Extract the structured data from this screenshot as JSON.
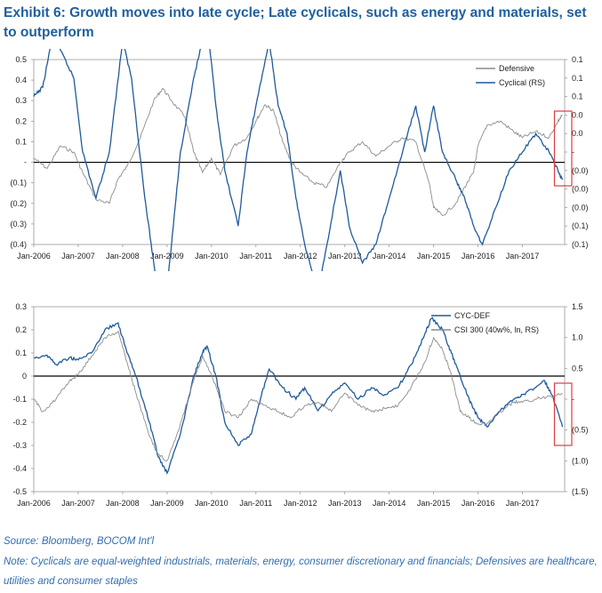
{
  "title": "Exhibit 6: Growth moves into late cycle; Late cyclicals, such as energy and materials, set to outperform",
  "source": "Source: Bloomberg, BOCOM Int'l",
  "note": "Note: Cyclicals are equal-weighted industrials, materials, energy, consumer discretionary and financials; Defensives are healthcare, utilities and consumer staples",
  "colors": {
    "grey": "#8c8c8c",
    "blue": "#1f5a9e",
    "highlight": "#e03c3c",
    "zero": "#000000",
    "frame": "#9a9a9a"
  },
  "chart_data": [
    {
      "type": "line",
      "x_ticks": [
        "Jan-2006",
        "Jan-2007",
        "Jan-2008",
        "Jan-2009",
        "Jan-2010",
        "Jan-2011",
        "Jan-2012",
        "Jan-2013",
        "Jan-2014",
        "Jan-2015",
        "Jan-2016",
        "Jan-2017"
      ],
      "x_range": [
        "2006-01",
        "2017-12"
      ],
      "y_left_ticks": [
        "0.5",
        "0.4",
        "0.3",
        "0.2",
        "0.1",
        "-",
        "(0.1)",
        "(0.2)",
        "(0.3)",
        "(0.4)"
      ],
      "y_left_range": [
        -0.4,
        0.5
      ],
      "y_right_ticks": [
        "0.1",
        "0.1",
        "0.1",
        "0.0",
        "0.0",
        "-",
        "(0.0)",
        "(0.0)",
        "(0.0)",
        "(0.1)",
        "(0.1)"
      ],
      "legend": "top-right",
      "series": [
        {
          "name": "Defensive",
          "axis": "left",
          "color": "grey",
          "points": [
            [
              2006.0,
              0.02
            ],
            [
              2006.3,
              -0.03
            ],
            [
              2006.6,
              0.08
            ],
            [
              2006.9,
              0.05
            ],
            [
              2007.1,
              -0.05
            ],
            [
              2007.4,
              -0.18
            ],
            [
              2007.7,
              -0.2
            ],
            [
              2007.9,
              -0.08
            ],
            [
              2008.1,
              -0.02
            ],
            [
              2008.4,
              0.12
            ],
            [
              2008.7,
              0.3
            ],
            [
              2008.9,
              0.36
            ],
            [
              2009.1,
              0.3
            ],
            [
              2009.4,
              0.22
            ],
            [
              2009.6,
              0.05
            ],
            [
              2009.8,
              -0.05
            ],
            [
              2010.0,
              0.02
            ],
            [
              2010.2,
              -0.06
            ],
            [
              2010.5,
              0.08
            ],
            [
              2010.8,
              0.12
            ],
            [
              2011.0,
              0.2
            ],
            [
              2011.2,
              0.28
            ],
            [
              2011.4,
              0.25
            ],
            [
              2011.6,
              0.1
            ],
            [
              2011.8,
              0.0
            ],
            [
              2012.0,
              -0.05
            ],
            [
              2012.3,
              -0.1
            ],
            [
              2012.6,
              -0.12
            ],
            [
              2012.9,
              0.0
            ],
            [
              2013.1,
              0.05
            ],
            [
              2013.4,
              0.1
            ],
            [
              2013.7,
              0.03
            ],
            [
              2014.0,
              0.08
            ],
            [
              2014.3,
              0.12
            ],
            [
              2014.6,
              0.1
            ],
            [
              2014.9,
              -0.1
            ],
            [
              2015.0,
              -0.22
            ],
            [
              2015.2,
              -0.26
            ],
            [
              2015.5,
              -0.2
            ],
            [
              2015.7,
              -0.12
            ],
            [
              2015.9,
              -0.05
            ],
            [
              2016.0,
              0.08
            ],
            [
              2016.2,
              0.18
            ],
            [
              2016.5,
              0.2
            ],
            [
              2016.8,
              0.15
            ],
            [
              2017.0,
              0.12
            ],
            [
              2017.3,
              0.15
            ],
            [
              2017.6,
              0.12
            ],
            [
              2017.8,
              0.2
            ],
            [
              2017.9,
              0.23
            ]
          ]
        },
        {
          "name": "Cyclical (RS)",
          "axis": "right",
          "color": "blue",
          "points": [
            [
              2006.0,
              0.06
            ],
            [
              2006.2,
              0.07
            ],
            [
              2006.4,
              0.12
            ],
            [
              2006.6,
              0.11
            ],
            [
              2006.9,
              0.08
            ],
            [
              2007.1,
              0.0
            ],
            [
              2007.4,
              -0.05
            ],
            [
              2007.7,
              0.0
            ],
            [
              2008.0,
              0.12
            ],
            [
              2008.2,
              0.08
            ],
            [
              2008.5,
              -0.05
            ],
            [
              2008.7,
              -0.12
            ],
            [
              2008.9,
              -0.19
            ],
            [
              2009.1,
              -0.1
            ],
            [
              2009.3,
              0.0
            ],
            [
              2009.6,
              0.08
            ],
            [
              2009.8,
              0.12
            ],
            [
              2009.9,
              0.14
            ],
            [
              2010.1,
              0.05
            ],
            [
              2010.3,
              -0.02
            ],
            [
              2010.6,
              -0.08
            ],
            [
              2010.8,
              0.0
            ],
            [
              2011.0,
              0.05
            ],
            [
              2011.3,
              0.12
            ],
            [
              2011.5,
              0.05
            ],
            [
              2011.7,
              0.02
            ],
            [
              2011.9,
              -0.05
            ],
            [
              2012.1,
              -0.1
            ],
            [
              2012.4,
              -0.15
            ],
            [
              2012.6,
              -0.1
            ],
            [
              2012.9,
              -0.02
            ],
            [
              2013.1,
              -0.08
            ],
            [
              2013.4,
              -0.12
            ],
            [
              2013.7,
              -0.1
            ],
            [
              2014.0,
              -0.05
            ],
            [
              2014.3,
              0.0
            ],
            [
              2014.6,
              0.05
            ],
            [
              2014.8,
              0.0
            ],
            [
              2015.0,
              0.05
            ],
            [
              2015.2,
              0.0
            ],
            [
              2015.5,
              -0.03
            ],
            [
              2015.7,
              -0.05
            ],
            [
              2015.9,
              -0.08
            ],
            [
              2016.1,
              -0.1
            ],
            [
              2016.4,
              -0.06
            ],
            [
              2016.7,
              -0.02
            ],
            [
              2017.0,
              0.0
            ],
            [
              2017.3,
              0.02
            ],
            [
              2017.6,
              0.0
            ],
            [
              2017.8,
              -0.02
            ],
            [
              2017.9,
              -0.03
            ]
          ]
        }
      ]
    },
    {
      "type": "line",
      "x_ticks": [
        "Jan-2006",
        "Jan-2007",
        "Jan-2008",
        "Jan-2009",
        "Jan-2010",
        "Jan-2011",
        "Jan-2012",
        "Jan-2013",
        "Jan-2014",
        "Jan-2015",
        "Jan-2016",
        "Jan-2017"
      ],
      "x_range": [
        "2006-01",
        "2017-12"
      ],
      "y_left_ticks": [
        "0.3",
        "0.2",
        "0.1",
        "0",
        "-0.1",
        "-0.2",
        "-0.3",
        "-0.4",
        "-0.5"
      ],
      "y_left_range": [
        -0.5,
        0.3
      ],
      "y_right_ticks": [
        "1.5",
        "1.0",
        "0.5",
        "-",
        "(0.5)",
        "(1.0)",
        "(1.5)"
      ],
      "y_right_range": [
        -1.5,
        1.5
      ],
      "legend": "top-right",
      "series": [
        {
          "name": "CYC-DEF",
          "axis": "left",
          "color": "blue",
          "points": [
            [
              2006.0,
              0.08
            ],
            [
              2006.3,
              0.09
            ],
            [
              2006.5,
              0.05
            ],
            [
              2006.8,
              0.08
            ],
            [
              2007.0,
              0.07
            ],
            [
              2007.3,
              0.1
            ],
            [
              2007.6,
              0.2
            ],
            [
              2007.9,
              0.23
            ],
            [
              2008.1,
              0.1
            ],
            [
              2008.3,
              0.0
            ],
            [
              2008.6,
              -0.2
            ],
            [
              2008.8,
              -0.35
            ],
            [
              2009.0,
              -0.42
            ],
            [
              2009.3,
              -0.25
            ],
            [
              2009.6,
              0.0
            ],
            [
              2009.8,
              0.1
            ],
            [
              2009.9,
              0.13
            ],
            [
              2010.1,
              0.0
            ],
            [
              2010.3,
              -0.2
            ],
            [
              2010.6,
              -0.3
            ],
            [
              2010.9,
              -0.25
            ],
            [
              2011.1,
              -0.1
            ],
            [
              2011.3,
              0.03
            ],
            [
              2011.6,
              -0.05
            ],
            [
              2011.9,
              -0.1
            ],
            [
              2012.1,
              -0.05
            ],
            [
              2012.4,
              -0.15
            ],
            [
              2012.7,
              -0.08
            ],
            [
              2013.0,
              -0.03
            ],
            [
              2013.3,
              -0.1
            ],
            [
              2013.6,
              -0.05
            ],
            [
              2013.9,
              -0.08
            ],
            [
              2014.2,
              -0.05
            ],
            [
              2014.5,
              0.05
            ],
            [
              2014.8,
              0.18
            ],
            [
              2014.95,
              0.25
            ],
            [
              2015.2,
              0.2
            ],
            [
              2015.4,
              0.1
            ],
            [
              2015.6,
              0.0
            ],
            [
              2015.8,
              -0.1
            ],
            [
              2016.0,
              -0.18
            ],
            [
              2016.2,
              -0.22
            ],
            [
              2016.5,
              -0.15
            ],
            [
              2016.8,
              -0.1
            ],
            [
              2017.0,
              -0.08
            ],
            [
              2017.3,
              -0.05
            ],
            [
              2017.5,
              -0.02
            ],
            [
              2017.7,
              -0.1
            ],
            [
              2017.9,
              -0.22
            ]
          ]
        },
        {
          "name": "CSI 300 (40w%, ln, RS)",
          "axis": "right",
          "color": "grey",
          "points": [
            [
              2006.0,
              0.0
            ],
            [
              2006.2,
              -0.2
            ],
            [
              2006.5,
              0.0
            ],
            [
              2006.8,
              0.3
            ],
            [
              2007.0,
              0.4
            ],
            [
              2007.3,
              0.7
            ],
            [
              2007.6,
              1.0
            ],
            [
              2007.9,
              1.1
            ],
            [
              2008.1,
              0.6
            ],
            [
              2008.3,
              0.1
            ],
            [
              2008.6,
              -0.6
            ],
            [
              2008.8,
              -0.9
            ],
            [
              2009.0,
              -1.0
            ],
            [
              2009.3,
              -0.4
            ],
            [
              2009.6,
              0.3
            ],
            [
              2009.8,
              0.7
            ],
            [
              2010.0,
              0.4
            ],
            [
              2010.3,
              -0.2
            ],
            [
              2010.6,
              -0.3
            ],
            [
              2010.9,
              0.0
            ],
            [
              2011.2,
              -0.1
            ],
            [
              2011.5,
              -0.2
            ],
            [
              2011.8,
              -0.3
            ],
            [
              2012.1,
              -0.1
            ],
            [
              2012.4,
              -0.05
            ],
            [
              2012.7,
              -0.2
            ],
            [
              2013.0,
              0.1
            ],
            [
              2013.3,
              -0.1
            ],
            [
              2013.6,
              -0.2
            ],
            [
              2013.9,
              -0.15
            ],
            [
              2014.2,
              -0.1
            ],
            [
              2014.5,
              0.2
            ],
            [
              2014.8,
              0.6
            ],
            [
              2015.0,
              1.0
            ],
            [
              2015.2,
              0.8
            ],
            [
              2015.4,
              0.4
            ],
            [
              2015.6,
              -0.2
            ],
            [
              2015.8,
              -0.3
            ],
            [
              2016.0,
              -0.4
            ],
            [
              2016.2,
              -0.4
            ],
            [
              2016.5,
              -0.2
            ],
            [
              2016.8,
              -0.05
            ],
            [
              2017.0,
              -0.05
            ],
            [
              2017.3,
              0.0
            ],
            [
              2017.6,
              0.05
            ],
            [
              2017.9,
              0.1
            ]
          ]
        }
      ]
    }
  ]
}
